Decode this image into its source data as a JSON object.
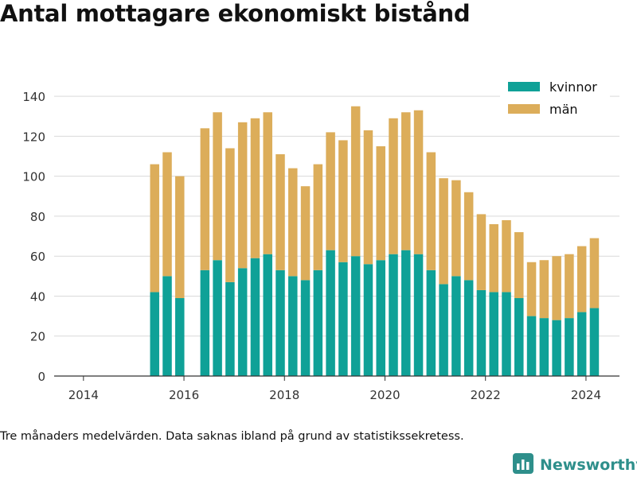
{
  "title": "Antal mottagare ekonomiskt bistånd",
  "footnote": "Tre månaders medelvärden. Data saknas ibland på grund av statistikssekretess.",
  "brand": {
    "name": "Newsworthy",
    "icon": "bar-chart-logo-icon"
  },
  "colors": {
    "kvinnor": "#0fa197",
    "man": "#dcad5a",
    "grid": "#d9d9d9",
    "axis": "#333333",
    "brand": "#2e8f8b"
  },
  "chart_data": {
    "type": "bar",
    "stacked": true,
    "title": "Antal mottagare ekonomiskt bistånd",
    "xlabel": "",
    "ylabel": "",
    "xlim": [
      "2013-06",
      "2024-09"
    ],
    "ylim": [
      0,
      150
    ],
    "x_ticks": [
      "2014",
      "2016",
      "2018",
      "2020",
      "2022",
      "2024"
    ],
    "y_ticks": [
      0,
      20,
      40,
      60,
      80,
      100,
      120,
      140
    ],
    "grid": true,
    "legend_position": "top-right",
    "x": [
      "2015-06",
      "2015-09",
      "2015-12",
      "2016-06",
      "2016-09",
      "2016-12",
      "2017-03",
      "2017-06",
      "2017-09",
      "2017-12",
      "2018-03",
      "2018-06",
      "2018-09",
      "2018-12",
      "2019-03",
      "2019-06",
      "2019-09",
      "2019-12",
      "2020-03",
      "2020-06",
      "2020-09",
      "2020-12",
      "2021-03",
      "2021-06",
      "2021-09",
      "2021-12",
      "2022-03",
      "2022-06",
      "2022-09",
      "2022-12",
      "2023-03",
      "2023-06",
      "2023-09",
      "2023-12",
      "2024-03"
    ],
    "series": [
      {
        "name": "kvinnor",
        "values": [
          42,
          50,
          39,
          53,
          58,
          47,
          54,
          59,
          61,
          53,
          50,
          48,
          53,
          63,
          57,
          60,
          56,
          58,
          61,
          63,
          61,
          53,
          46,
          50,
          48,
          43,
          42,
          42,
          39,
          30,
          29,
          28,
          29,
          32,
          34
        ]
      },
      {
        "name": "män",
        "values": [
          64,
          62,
          61,
          71,
          74,
          67,
          73,
          70,
          71,
          58,
          54,
          47,
          53,
          59,
          61,
          75,
          67,
          57,
          68,
          69,
          72,
          59,
          53,
          48,
          44,
          38,
          34,
          36,
          33,
          27,
          29,
          32,
          32,
          33,
          35
        ]
      }
    ]
  }
}
